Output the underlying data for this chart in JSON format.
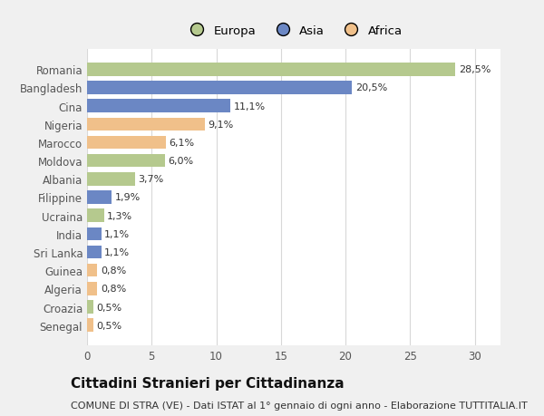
{
  "categories": [
    "Romania",
    "Bangladesh",
    "Cina",
    "Nigeria",
    "Marocco",
    "Moldova",
    "Albania",
    "Filippine",
    "Ucraina",
    "India",
    "Sri Lanka",
    "Guinea",
    "Algeria",
    "Croazia",
    "Senegal"
  ],
  "values": [
    28.5,
    20.5,
    11.1,
    9.1,
    6.1,
    6.0,
    3.7,
    1.9,
    1.3,
    1.1,
    1.1,
    0.8,
    0.8,
    0.5,
    0.5
  ],
  "labels": [
    "28,5%",
    "20,5%",
    "11,1%",
    "9,1%",
    "6,1%",
    "6,0%",
    "3,7%",
    "1,9%",
    "1,3%",
    "1,1%",
    "1,1%",
    "0,8%",
    "0,8%",
    "0,5%",
    "0,5%"
  ],
  "continents": [
    "Europa",
    "Asia",
    "Asia",
    "Africa",
    "Africa",
    "Europa",
    "Europa",
    "Asia",
    "Europa",
    "Asia",
    "Asia",
    "Africa",
    "Africa",
    "Europa",
    "Africa"
  ],
  "colors": {
    "Europa": "#b5c98e",
    "Asia": "#6b87c4",
    "Africa": "#f0c08a"
  },
  "xlim": [
    0,
    32
  ],
  "xticks": [
    0,
    5,
    10,
    15,
    20,
    25,
    30
  ],
  "title": "Cittadini Stranieri per Cittadinanza",
  "subtitle": "COMUNE DI STRA (VE) - Dati ISTAT al 1° gennaio di ogni anno - Elaborazione TUTTITALIA.IT",
  "bg_color": "#f0f0f0",
  "plot_bg_color": "#ffffff",
  "grid_color": "#d8d8d8",
  "title_fontsize": 11,
  "subtitle_fontsize": 8,
  "bar_height": 0.72,
  "label_fontsize": 8,
  "ytick_fontsize": 8.5,
  "xtick_fontsize": 8.5
}
